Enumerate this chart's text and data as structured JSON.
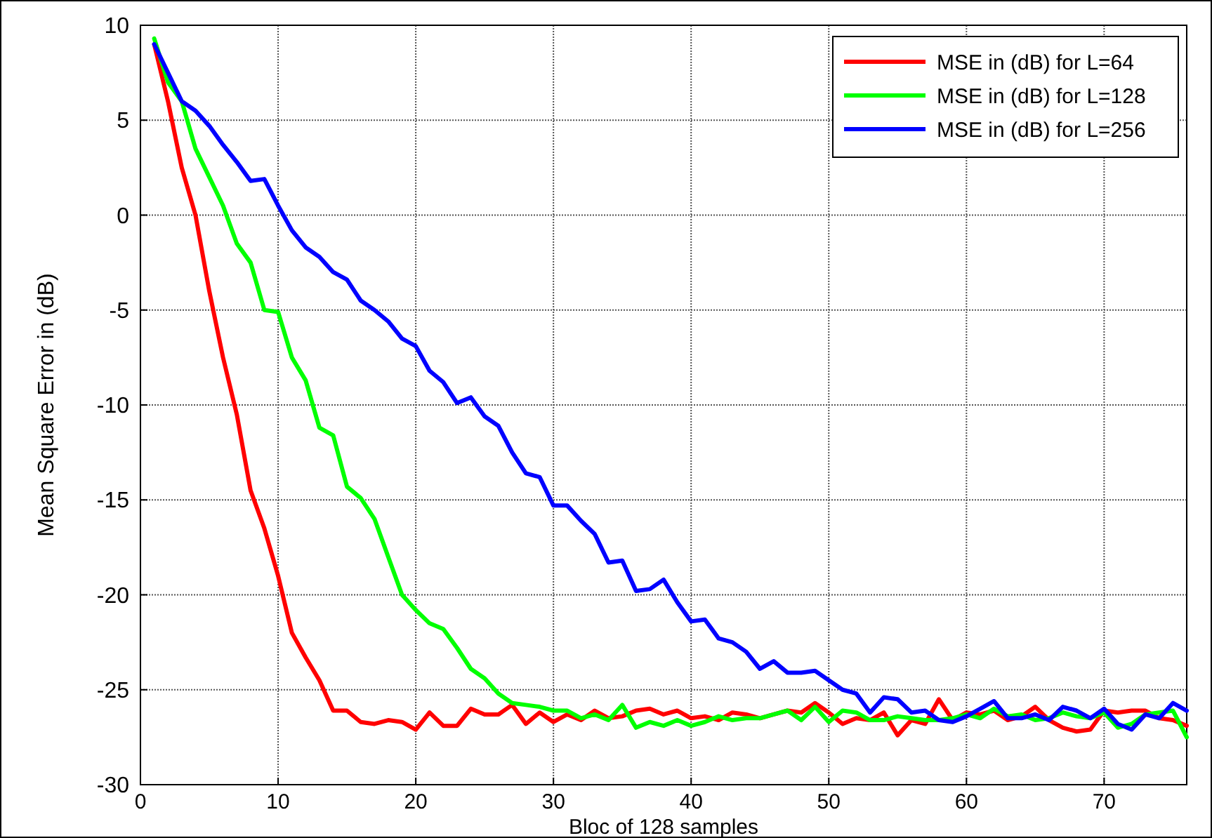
{
  "chart_data": {
    "type": "line",
    "xlabel": "Bloc of 128 samples",
    "ylabel": "Mean Square Error in (dB)",
    "x": [
      1,
      2,
      3,
      4,
      5,
      6,
      7,
      8,
      9,
      10,
      11,
      12,
      13,
      14,
      15,
      16,
      17,
      18,
      19,
      20,
      21,
      22,
      23,
      24,
      25,
      26,
      27,
      28,
      29,
      30,
      31,
      32,
      33,
      34,
      35,
      36,
      37,
      38,
      39,
      40,
      41,
      42,
      43,
      44,
      45,
      46,
      47,
      48,
      49,
      50,
      51,
      52,
      53,
      54,
      55,
      56,
      57,
      58,
      59,
      60,
      61,
      62,
      63,
      64,
      65,
      66,
      67,
      68,
      69,
      70,
      71,
      72,
      73,
      74,
      75,
      76
    ],
    "series": [
      {
        "name": "MSE in (dB) for L=64",
        "color": "#ff0000",
        "values": [
          9,
          6,
          2.5,
          0,
          -4,
          -7.5,
          -10.5,
          -14.5,
          -16.5,
          -19,
          -22,
          -23.3,
          -24.5,
          -26.1,
          -26.1,
          -26.7,
          -26.8,
          -26.6,
          -26.7,
          -27.1,
          -26.2,
          -26.9,
          -26.9,
          -26,
          -26.3,
          -26.3,
          -25.8,
          -26.8,
          -26.2,
          -26.7,
          -26.3,
          -26.6,
          -26.1,
          -26.5,
          -26.4,
          -26.1,
          -26,
          -26.3,
          -26.1,
          -26.5,
          -26.4,
          -26.6,
          -26.2,
          -26.3,
          -26.5,
          -26.3,
          -26.1,
          -26.2,
          -25.7,
          -26.2,
          -26.8,
          -26.5,
          -26.6,
          -26.2,
          -27.4,
          -26.6,
          -26.8,
          -25.5,
          -26.6,
          -26.2,
          -26.3,
          -26.1,
          -26.6,
          -26.4,
          -25.9,
          -26.6,
          -27,
          -27.2,
          -27.1,
          -26.1,
          -26.2,
          -26.1,
          -26.1,
          -26.5,
          -26.6,
          -26.9
        ]
      },
      {
        "name": "MSE in (dB) for L=128",
        "color": "#00ff00",
        "values": [
          9.3,
          7,
          6,
          3.5,
          2,
          0.5,
          -1.5,
          -2.5,
          -5,
          -5.1,
          -7.5,
          -8.7,
          -11.2,
          -11.6,
          -14.3,
          -14.9,
          -16,
          -18,
          -20,
          -20.8,
          -21.5,
          -21.8,
          -22.8,
          -23.9,
          -24.4,
          -25.2,
          -25.7,
          -25.8,
          -25.9,
          -26.1,
          -26.1,
          -26.5,
          -26.3,
          -26.6,
          -25.8,
          -27,
          -26.7,
          -26.9,
          -26.6,
          -26.9,
          -26.7,
          -26.4,
          -26.6,
          -26.5,
          -26.5,
          -26.3,
          -26.1,
          -26.6,
          -25.9,
          -26.7,
          -26.1,
          -26.2,
          -26.6,
          -26.6,
          -26.4,
          -26.5,
          -26.6,
          -26.6,
          -26.5,
          -26.3,
          -26.5,
          -26,
          -26.4,
          -26.3,
          -26.6,
          -26.5,
          -26.2,
          -26.4,
          -26.5,
          -26.2,
          -27,
          -26.8,
          -26.3,
          -26.2,
          -26.1,
          -27.5
        ]
      },
      {
        "name": "MSE in (dB) for L=256",
        "color": "#0000ff",
        "values": [
          9,
          7.5,
          6,
          5.5,
          4.7,
          3.7,
          2.8,
          1.8,
          1.9,
          0.5,
          -0.8,
          -1.7,
          -2.2,
          -3,
          -3.4,
          -4.5,
          -5,
          -5.6,
          -6.5,
          -6.9,
          -8.2,
          -8.8,
          -9.9,
          -9.6,
          -10.6,
          -11.1,
          -12.5,
          -13.6,
          -13.8,
          -15.3,
          -15.3,
          -16.1,
          -16.8,
          -18.3,
          -18.2,
          -19.8,
          -19.7,
          -19.2,
          -20.4,
          -21.4,
          -21.3,
          -22.3,
          -22.5,
          -23,
          -23.9,
          -23.5,
          -24.1,
          -24.1,
          -24,
          -24.5,
          -25,
          -25.2,
          -26.2,
          -25.4,
          -25.5,
          -26.2,
          -26.1,
          -26.6,
          -26.7,
          -26.4,
          -26,
          -25.6,
          -26.5,
          -26.5,
          -26.3,
          -26.6,
          -25.9,
          -26.1,
          -26.5,
          -26,
          -26.8,
          -27.1,
          -26.3,
          -26.5,
          -25.7,
          -26.1
        ]
      }
    ],
    "xlim": [
      0,
      76
    ],
    "xticks": [
      0,
      10,
      20,
      30,
      40,
      50,
      60,
      70
    ],
    "ylim": [
      -30,
      10
    ],
    "yticks": [
      -30,
      -25,
      -20,
      -15,
      -10,
      -5,
      0,
      5,
      10
    ],
    "grid": true,
    "legend": "top right",
    "marker": "none",
    "line_style": "solid"
  }
}
